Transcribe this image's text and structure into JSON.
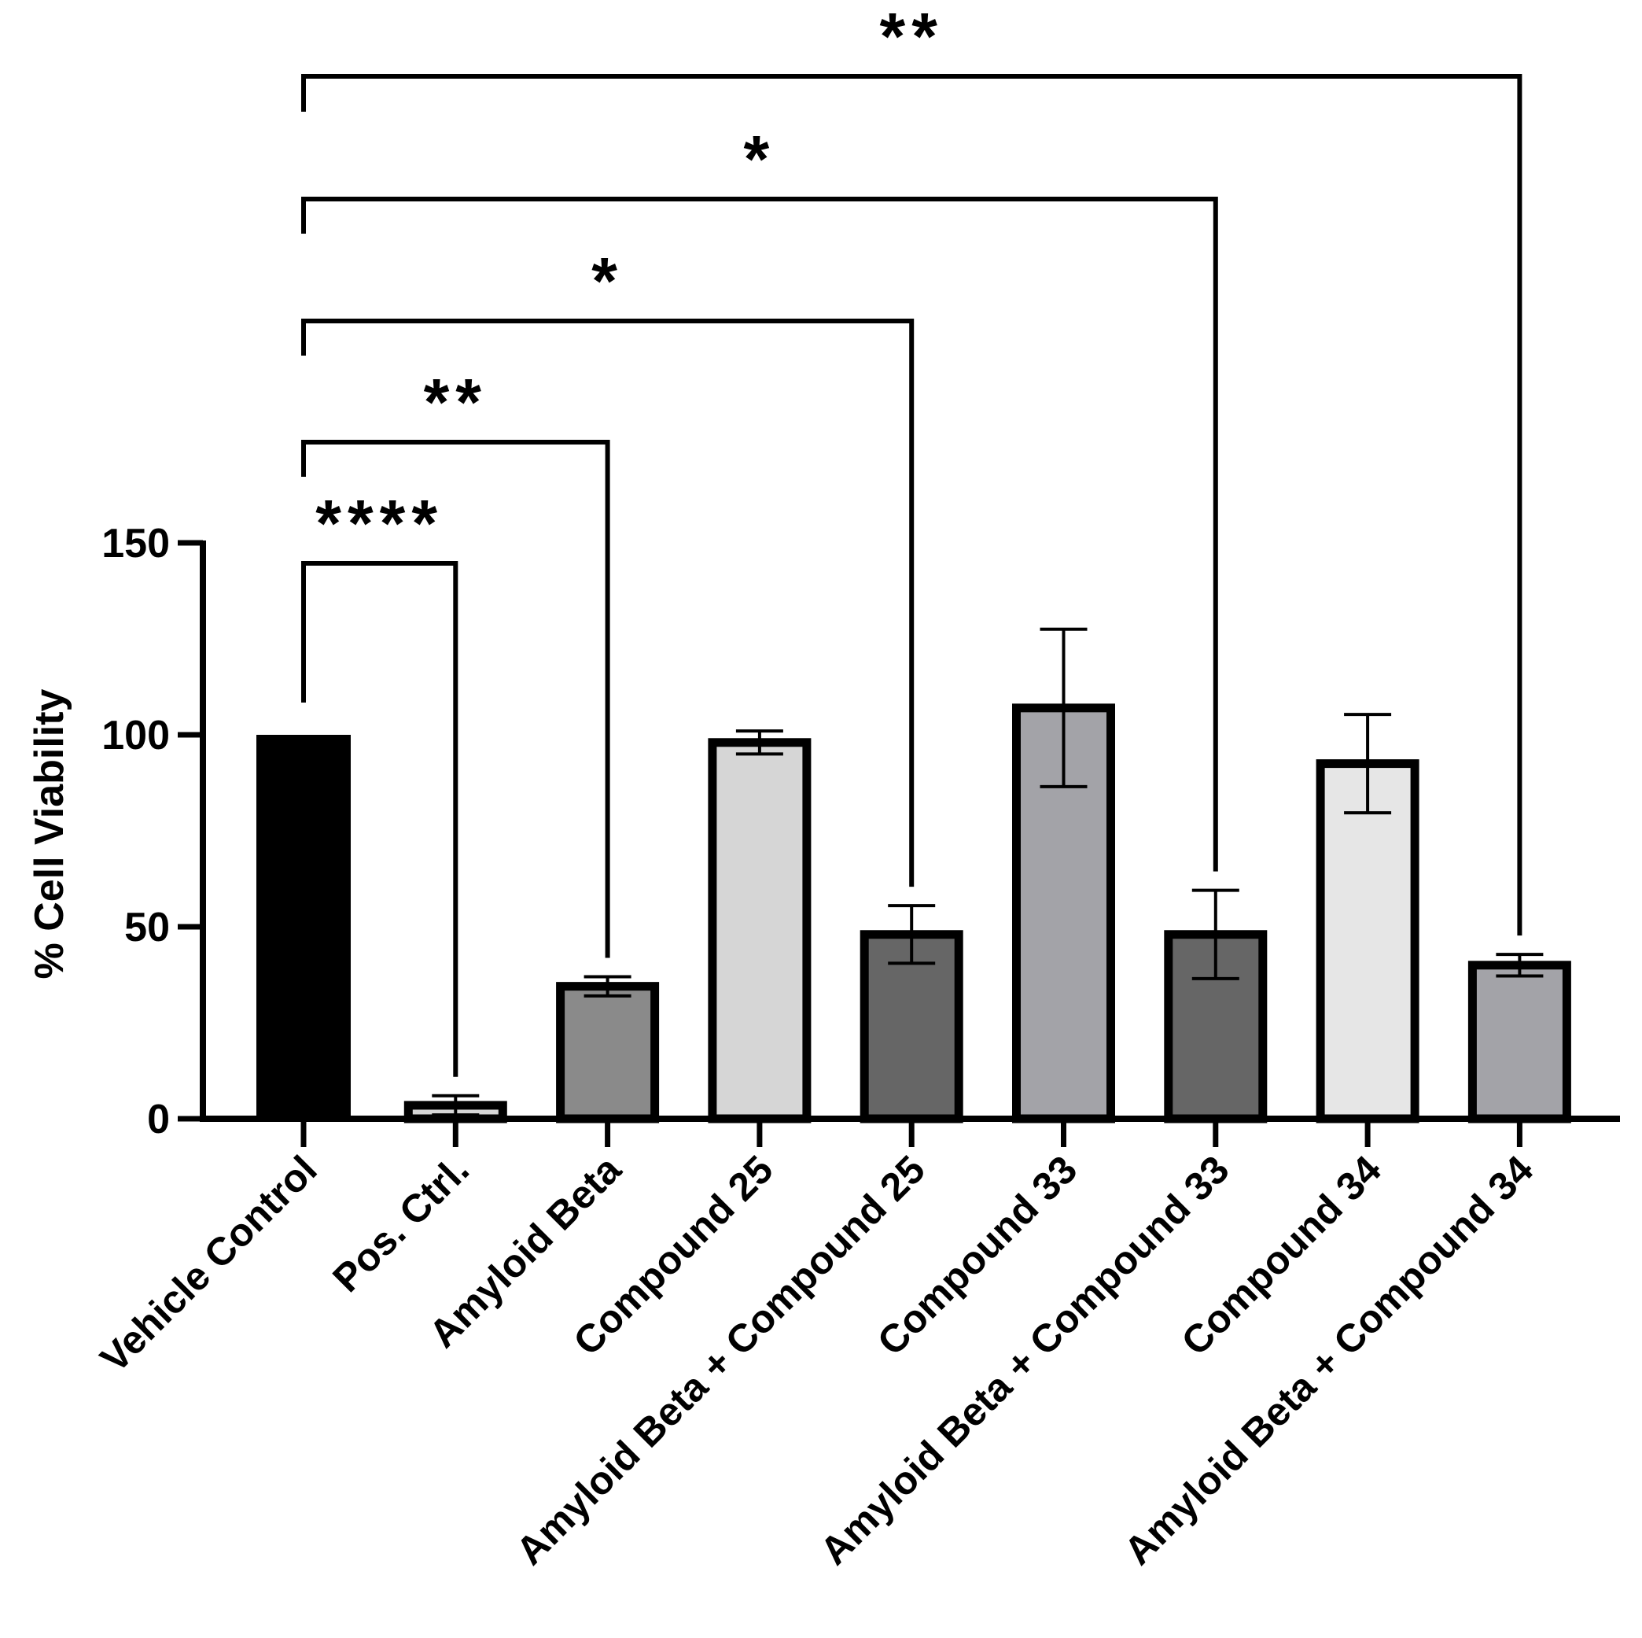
{
  "chart_data": {
    "type": "bar",
    "title": "",
    "xlabel": "",
    "ylabel": "% Cell Viability",
    "ylim": [
      0,
      150
    ],
    "yticks": [
      0,
      50,
      100,
      150
    ],
    "grid": false,
    "categories": [
      "Vehicle Control",
      "Pos. Ctrl.",
      "Amyloid Beta",
      "Compound 25",
      "Amyloid Beta + Compound 25",
      "Compound 33",
      "Amyloid Beta + Compound 33",
      "Compound 34",
      "Amyloid Beta + Compound 34"
    ],
    "values": [
      100,
      3.5,
      34.5,
      98,
      48,
      107,
      48,
      92.5,
      40
    ],
    "errors": [
      0,
      2.5,
      2.5,
      3,
      7.5,
      20.5,
      11.5,
      12.8,
      2.8
    ],
    "bar_colors": [
      "#000000",
      "#d6d6d6",
      "#8a8a8a",
      "#d6d6d6",
      "#666666",
      "#a3a3a8",
      "#666666",
      "#e6e6e6",
      "#a3a3a8"
    ],
    "significance": [
      {
        "from": 0,
        "to": 1,
        "label": "****"
      },
      {
        "from": 0,
        "to": 2,
        "label": "**"
      },
      {
        "from": 0,
        "to": 4,
        "label": "*"
      },
      {
        "from": 0,
        "to": 6,
        "label": "*"
      },
      {
        "from": 0,
        "to": 8,
        "label": "**"
      }
    ]
  }
}
